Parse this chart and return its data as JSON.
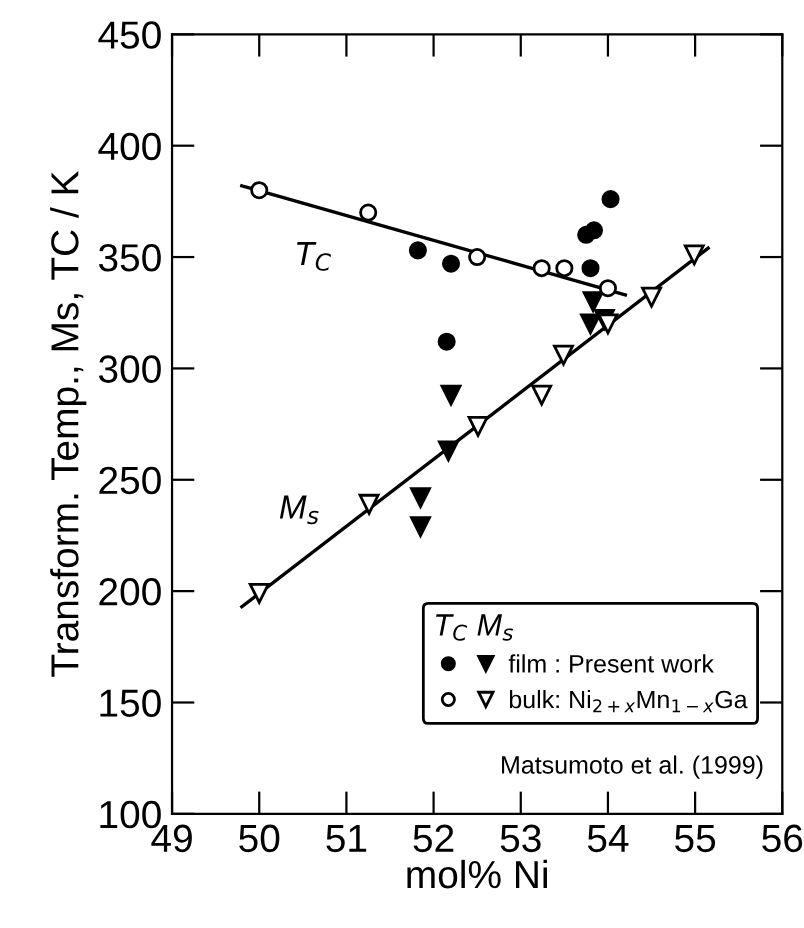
{
  "chart_data": {
    "type": "scatter",
    "xlabel": "mol% Ni",
    "ylabel": "Transform. Temp., Ms, TC / K",
    "legend_title": "T$_{C}$ M$_{s}$",
    "xlim": [
      49,
      56
    ],
    "ylim": [
      100,
      450
    ],
    "xticks": [
      49,
      50,
      51,
      52,
      53,
      54,
      55,
      56
    ],
    "yticks": [
      100,
      150,
      200,
      250,
      300,
      350,
      400,
      450
    ],
    "grid": false,
    "legend": "bottom right",
    "series": [
      {
        "color": "#000000",
        "marker": "circle",
        "x": [
          51.82,
          52.2,
          52.15,
          53.75,
          53.84,
          53.8,
          54.03
        ],
        "values": [
          353,
          347,
          312,
          360,
          362,
          345,
          376
        ]
      },
      {
        "name": "film : Present work",
        "color": "#000000",
        "marker": "triangle",
        "x": [
          53.83,
          53.8,
          53.96,
          52.2,
          52.17,
          51.85,
          51.85
        ],
        "values": [
          330,
          320,
          322,
          288,
          263,
          242,
          229
        ]
      },
      {
        "color": "#000000",
        "marker": "circle",
        "x": [
          50.0,
          51.25,
          52.5,
          53.24,
          53.5,
          54.0
        ],
        "values": [
          380,
          370,
          350,
          345,
          345,
          336
        ]
      },
      {
        "name": "bulk: Ni$_{2+x}$Mn$_{1−x}$Ga",
        "color": "#000000",
        "marker": "triangle",
        "x": [
          50.0,
          51.26,
          52.51,
          53.24,
          53.49,
          54.0,
          54.5,
          54.99
        ],
        "values": [
          199,
          239,
          274,
          288,
          306,
          320,
          332,
          351
        ]
      },
      {
        "type": "line",
        "color": "#000000",
        "marker": "none",
        "x": [
          49.8,
          54.2
        ],
        "values": [
          382,
          333
        ]
      },
      {
        "type": "line",
        "color": "#000000",
        "marker": "none",
        "x": [
          49.8,
          55.15
        ],
        "values": [
          193,
          354
        ]
      }
    ],
    "annotations": [
      "T$_{C}$",
      "M$_{s}$",
      "Matsumoto et al. (1999)"
    ]
  }
}
